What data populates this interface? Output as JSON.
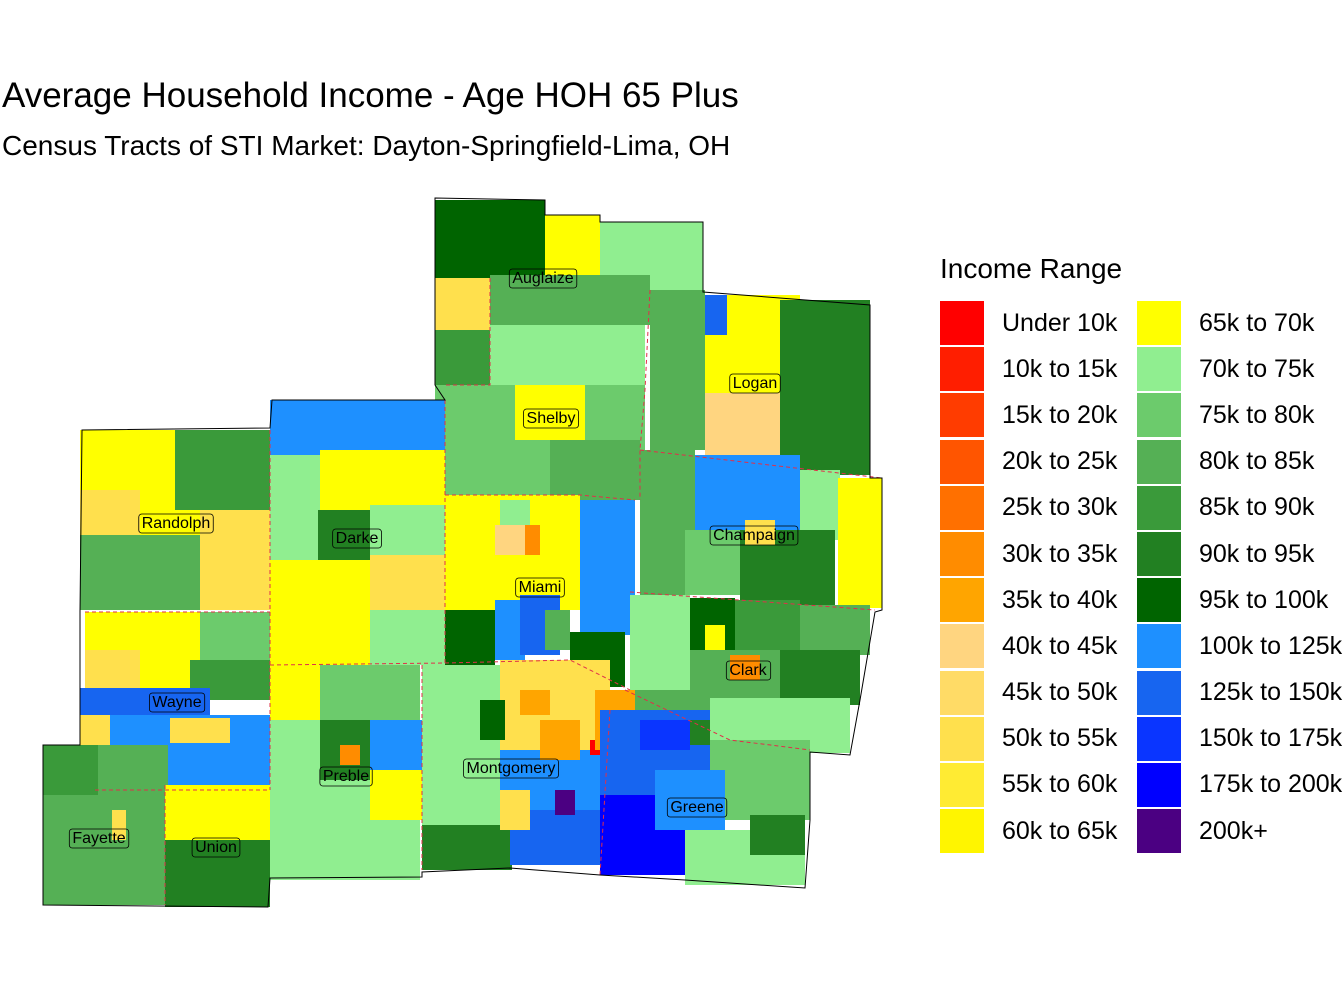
{
  "title": "Average Household Income - Age HOH 65 Plus",
  "subtitle": "Census Tracts of STI Market: Dayton-Springfield-Lima, OH",
  "legend": {
    "title": "Income Range",
    "items": [
      {
        "label": "Under 10k",
        "color": "#FF0000"
      },
      {
        "label": "10k to 15k",
        "color": "#FF1E00"
      },
      {
        "label": "15k to 20k",
        "color": "#FF3C00"
      },
      {
        "label": "20k to 25k",
        "color": "#FF5500"
      },
      {
        "label": "25k to 30k",
        "color": "#FF7000"
      },
      {
        "label": "30k to 35k",
        "color": "#FF8C00"
      },
      {
        "label": "35k to 40k",
        "color": "#FFA500"
      },
      {
        "label": "40k to 45k",
        "color": "#FFD580"
      },
      {
        "label": "45k to 50k",
        "color": "#FFDB66"
      },
      {
        "label": "50k to 55k",
        "color": "#FFE04D"
      },
      {
        "label": "55k to 60k",
        "color": "#FFEB33"
      },
      {
        "label": "60k to 65k",
        "color": "#FFF500"
      },
      {
        "label": "65k to 70k",
        "color": "#FFFF00"
      },
      {
        "label": "70k to 75k",
        "color": "#90EE90"
      },
      {
        "label": "75k to 80k",
        "color": "#6CCB6C"
      },
      {
        "label": "80k to 85k",
        "color": "#55B055"
      },
      {
        "label": "85k to 90k",
        "color": "#3A9A3A"
      },
      {
        "label": "90k to 95k",
        "color": "#228022"
      },
      {
        "label": "95k to 100k",
        "color": "#006400"
      },
      {
        "label": "100k to 125k",
        "color": "#1E90FF"
      },
      {
        "label": "125k to 150k",
        "color": "#1765F0"
      },
      {
        "label": "150k to 175k",
        "color": "#0A35FF"
      },
      {
        "label": "175k to 200k",
        "color": "#0000FF"
      },
      {
        "label": "200k+",
        "color": "#4B0082"
      }
    ]
  },
  "counties": [
    "Auglaize",
    "Logan",
    "Shelby",
    "Randolph",
    "Darke",
    "Champaign",
    "Miami",
    "Clark",
    "Wayne",
    "Preble",
    "Montgomery",
    "Greene",
    "Fayette",
    "Union"
  ]
}
